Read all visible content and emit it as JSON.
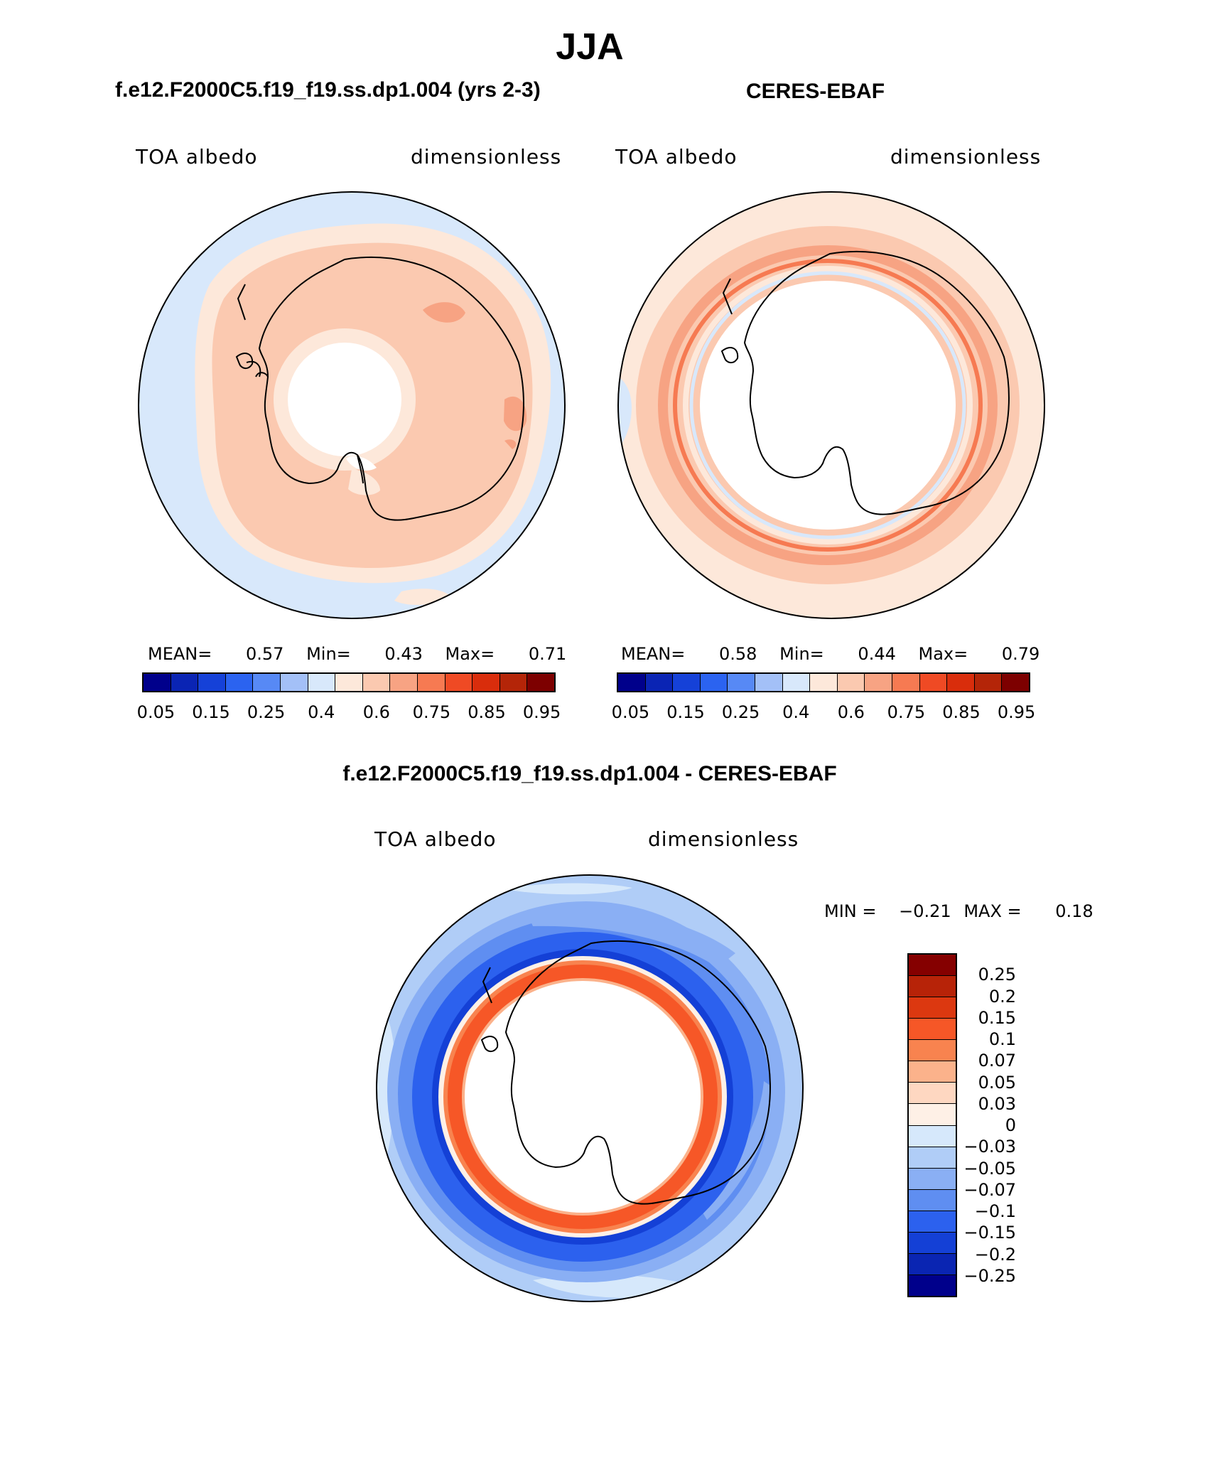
{
  "figure": {
    "season": "JJA",
    "model_title": "f.e12.F2000C5.f19_f19.ss.dp1.004 (yrs 2-3)",
    "obs_title": "CERES-EBAF",
    "diff_title": "f.e12.F2000C5.f19_f19.ss.dp1.004 - CERES-EBAF"
  },
  "panels": {
    "model": {
      "variable": "TOA albedo",
      "units": "dimensionless",
      "mean_label": "MEAN=",
      "mean": "0.57",
      "min_label": "Min=",
      "min": "0.43",
      "max_label": "Max=",
      "max": "0.71"
    },
    "obs": {
      "variable": "TOA albedo",
      "units": "dimensionless",
      "mean_label": "MEAN=",
      "mean": "0.58",
      "min_label": "Min=",
      "min": "0.44",
      "max_label": "Max=",
      "max": "0.79"
    },
    "diff": {
      "variable": "TOA albedo",
      "units": "dimensionless",
      "min_label": "MIN =",
      "min": "−0.21",
      "max_label": "MAX =",
      "max": "0.18"
    }
  },
  "colorbars": {
    "abs": {
      "colors": [
        "#00008b",
        "#0a24b4",
        "#1541d8",
        "#2b63f0",
        "#5789f5",
        "#a3c0f7",
        "#d8e8fb",
        "#fde8da",
        "#fbc9b0",
        "#f7a383",
        "#f67a52",
        "#ef4a24",
        "#d92d0c",
        "#b42508",
        "#7d0000"
      ],
      "tick_labels": [
        "0.05",
        "0.15",
        "0.25",
        "0.4",
        "0.6",
        "0.75",
        "0.85",
        "0.95"
      ]
    },
    "diff": {
      "colors_top_to_bottom": [
        "#850000",
        "#b72308",
        "#dc3810",
        "#f65727",
        "#f8834f",
        "#fbb28b",
        "#fed7c1",
        "#fef0e6",
        "#d6e8fb",
        "#b0cdf7",
        "#8aaff4",
        "#5f8ef1",
        "#2c61ee",
        "#1440d6",
        "#0a25b2",
        "#00008b"
      ],
      "tick_labels": [
        "0.25",
        "0.2",
        "0.15",
        "0.1",
        "0.07",
        "0.05",
        "0.03",
        "0",
        "−0.03",
        "−0.05",
        "−0.07",
        "−0.1",
        "−0.15",
        "−0.2",
        "−0.25"
      ]
    }
  }
}
